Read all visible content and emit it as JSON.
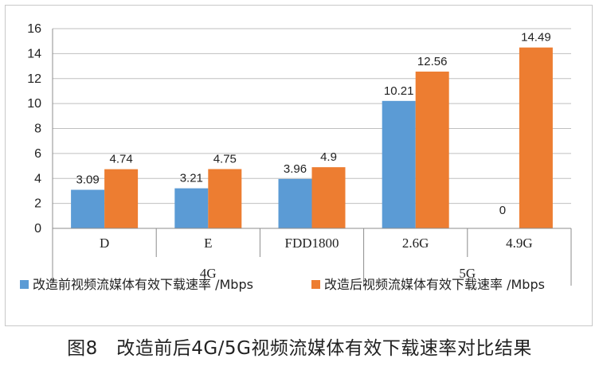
{
  "chart_data": {
    "type": "bar",
    "groups": [
      {
        "name": "4G",
        "categories": [
          "D",
          "E",
          "FDD1800"
        ]
      },
      {
        "name": "5G",
        "categories": [
          "2.6G",
          "4.9G"
        ]
      }
    ],
    "categories": [
      "D",
      "E",
      "FDD1800",
      "2.6G",
      "4.9G"
    ],
    "series": [
      {
        "name": "改造前视频流媒体有效下载速率 /Mbps",
        "color": "#5b9bd5",
        "values": [
          3.09,
          3.21,
          3.96,
          10.21,
          0
        ],
        "labels": [
          "3.09",
          "3.21",
          "3.96",
          "10.21",
          "0"
        ]
      },
      {
        "name": "改造后视频流媒体有效下载速率 /Mbps",
        "color": "#ed7d31",
        "values": [
          4.74,
          4.75,
          4.9,
          12.56,
          14.49
        ],
        "labels": [
          "4.74",
          "4.75",
          "4.9",
          "12.56",
          "14.49"
        ]
      }
    ],
    "ylim": [
      0,
      16
    ],
    "yticks": [
      "0",
      "2",
      "4",
      "6",
      "8",
      "10",
      "12",
      "14",
      "16"
    ],
    "grid": true,
    "legend": "bottom"
  },
  "caption": "图8　改造前后4G/5G视频流媒体有效下载速率对比结果"
}
